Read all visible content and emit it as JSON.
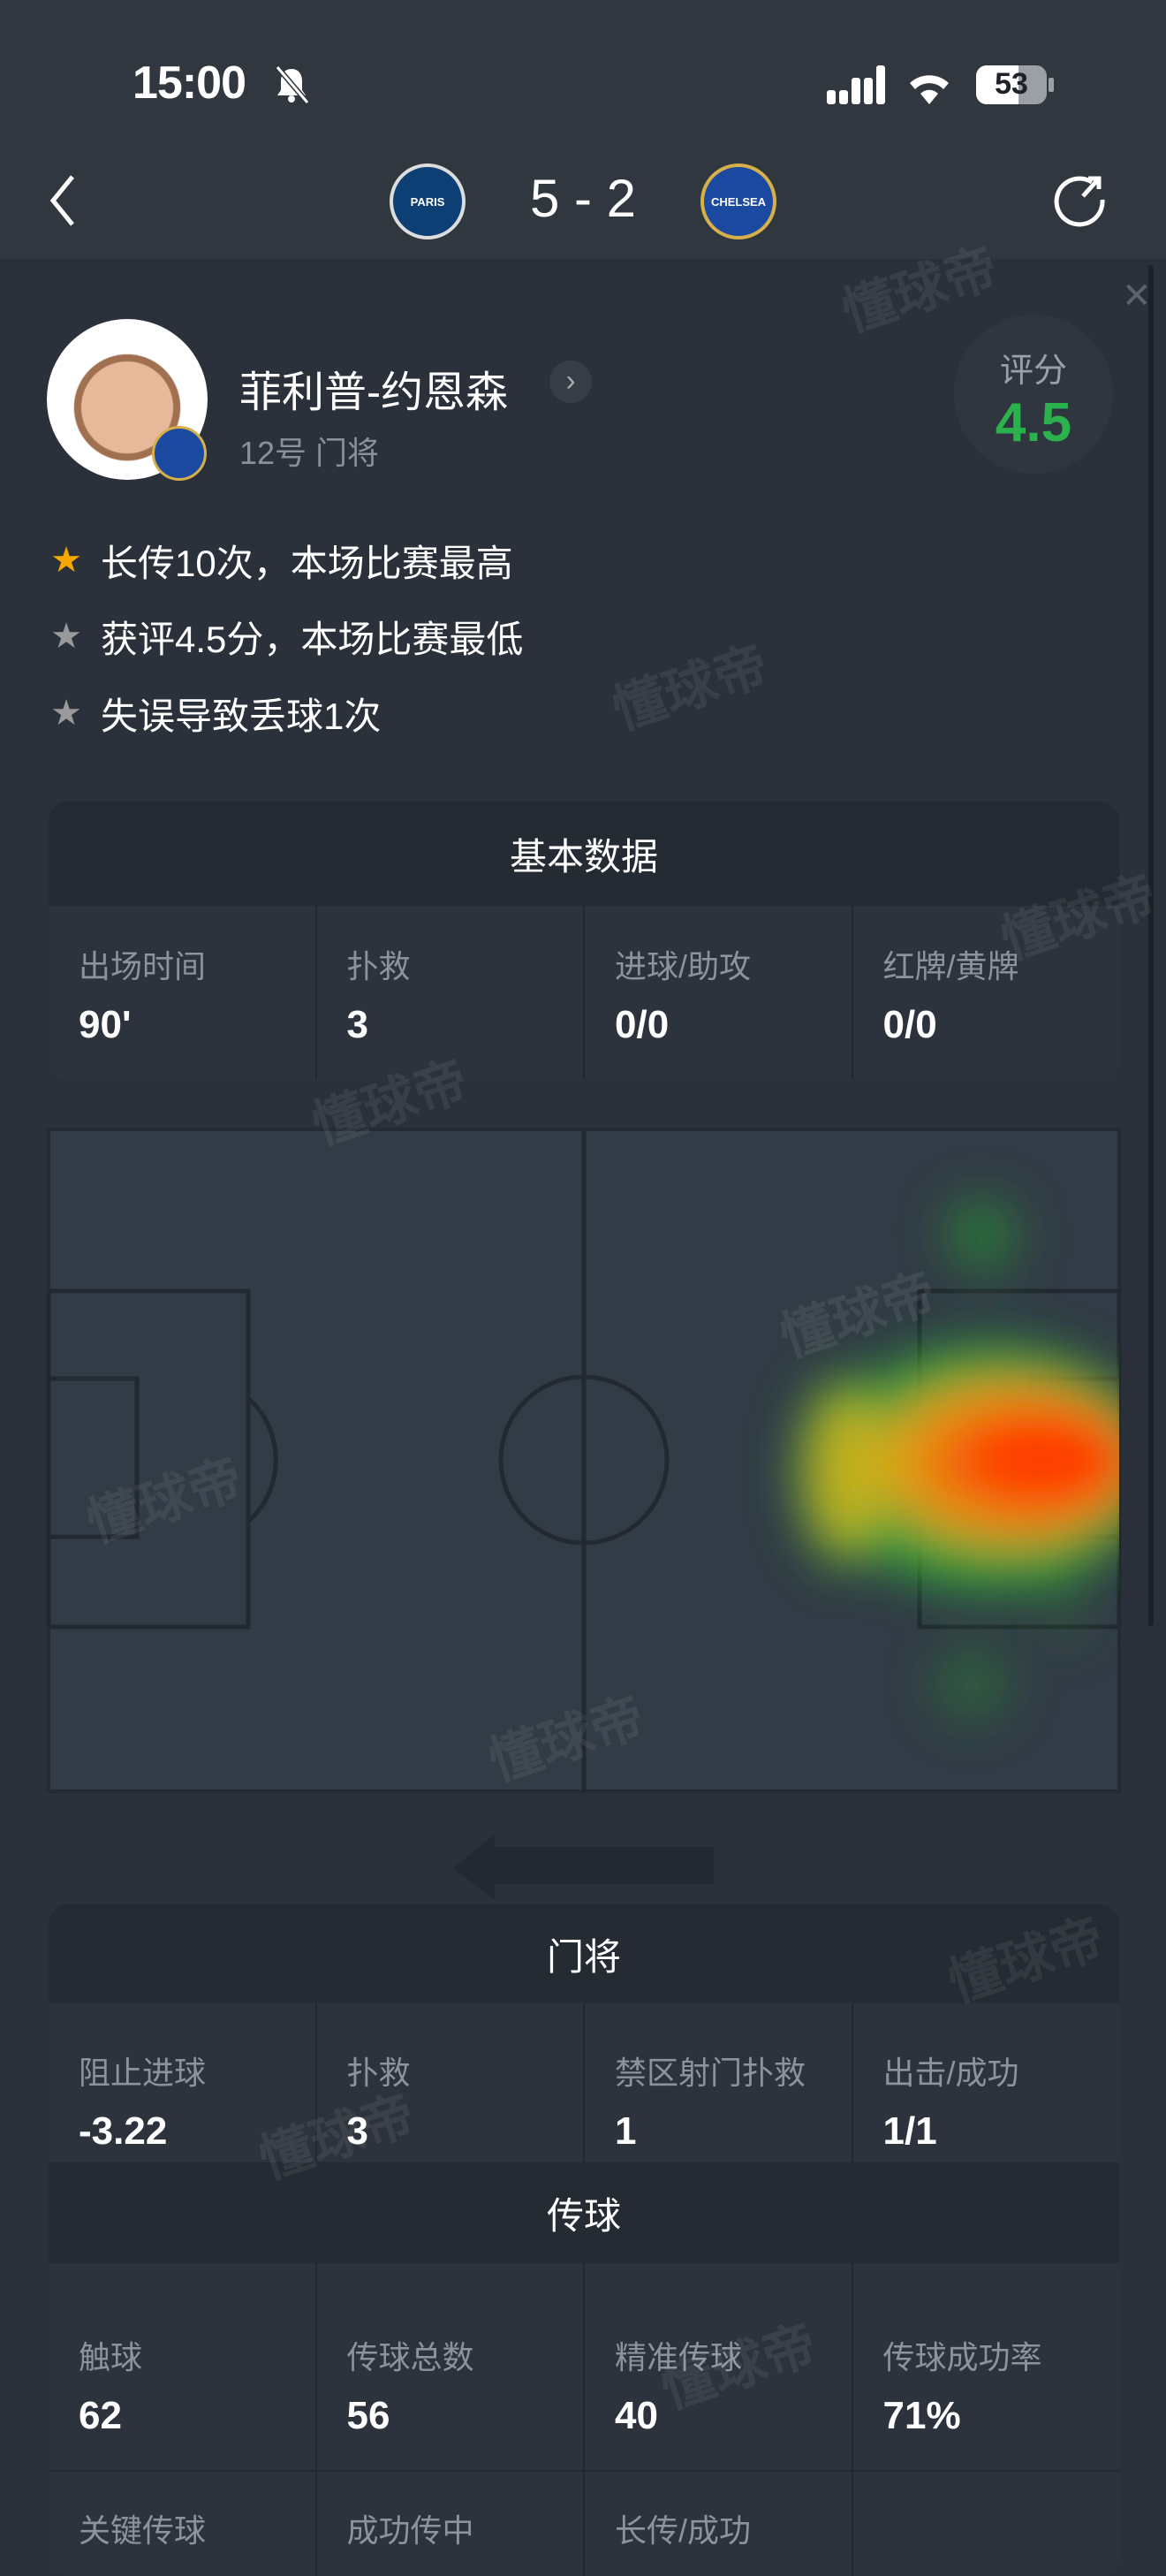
{
  "status_bar": {
    "time": "15:00",
    "battery": "53",
    "icons": [
      "bell-slash-icon",
      "signal-icon",
      "wifi-icon",
      "battery-icon"
    ]
  },
  "match": {
    "home_team": "PARIS",
    "away_team": "CHELSEA",
    "score": "5 - 2",
    "home_color": "#0e3f74",
    "away_color": "#1b4aa0"
  },
  "player": {
    "name": "菲利普-约恩森",
    "subtitle": "12号 门将",
    "rating_label": "评分",
    "rating": "4.5",
    "rating_color": "#2bb24c"
  },
  "highlights": [
    {
      "icon": "gold-star-icon",
      "text": "长传10次，本场比赛最高"
    },
    {
      "icon": "silver-star-icon",
      "text": "获评4.5分，本场比赛最低"
    },
    {
      "icon": "silver-star-icon",
      "text": "失误导致丢球1次"
    }
  ],
  "basic": {
    "title": "基本数据",
    "stats": [
      {
        "label": "出场时间",
        "value": "90'"
      },
      {
        "label": "扑救",
        "value": "3"
      },
      {
        "label": "进球/助攻",
        "value": "0/0"
      },
      {
        "label": "红牌/黄牌",
        "value": "0/0"
      }
    ]
  },
  "heatmap": {
    "attack_direction": "left"
  },
  "goalkeeper": {
    "title": "门将",
    "stats": [
      {
        "label": "阻止进球",
        "value": "-3.22"
      },
      {
        "label": "扑救",
        "value": "3"
      },
      {
        "label": "禁区射门扑救",
        "value": "1"
      },
      {
        "label": "出击/成功",
        "value": "1/1"
      }
    ]
  },
  "passing": {
    "title": "传球",
    "stats": [
      {
        "label": "触球",
        "value": "62"
      },
      {
        "label": "传球总数",
        "value": "56"
      },
      {
        "label": "精准传球",
        "value": "40"
      },
      {
        "label": "传球成功率",
        "value": "71%"
      }
    ],
    "stats2": [
      {
        "label": "关键传球"
      },
      {
        "label": "成功传中"
      },
      {
        "label": "长传/成功"
      },
      {
        "label": ""
      }
    ]
  },
  "watermark": "懂球帝"
}
